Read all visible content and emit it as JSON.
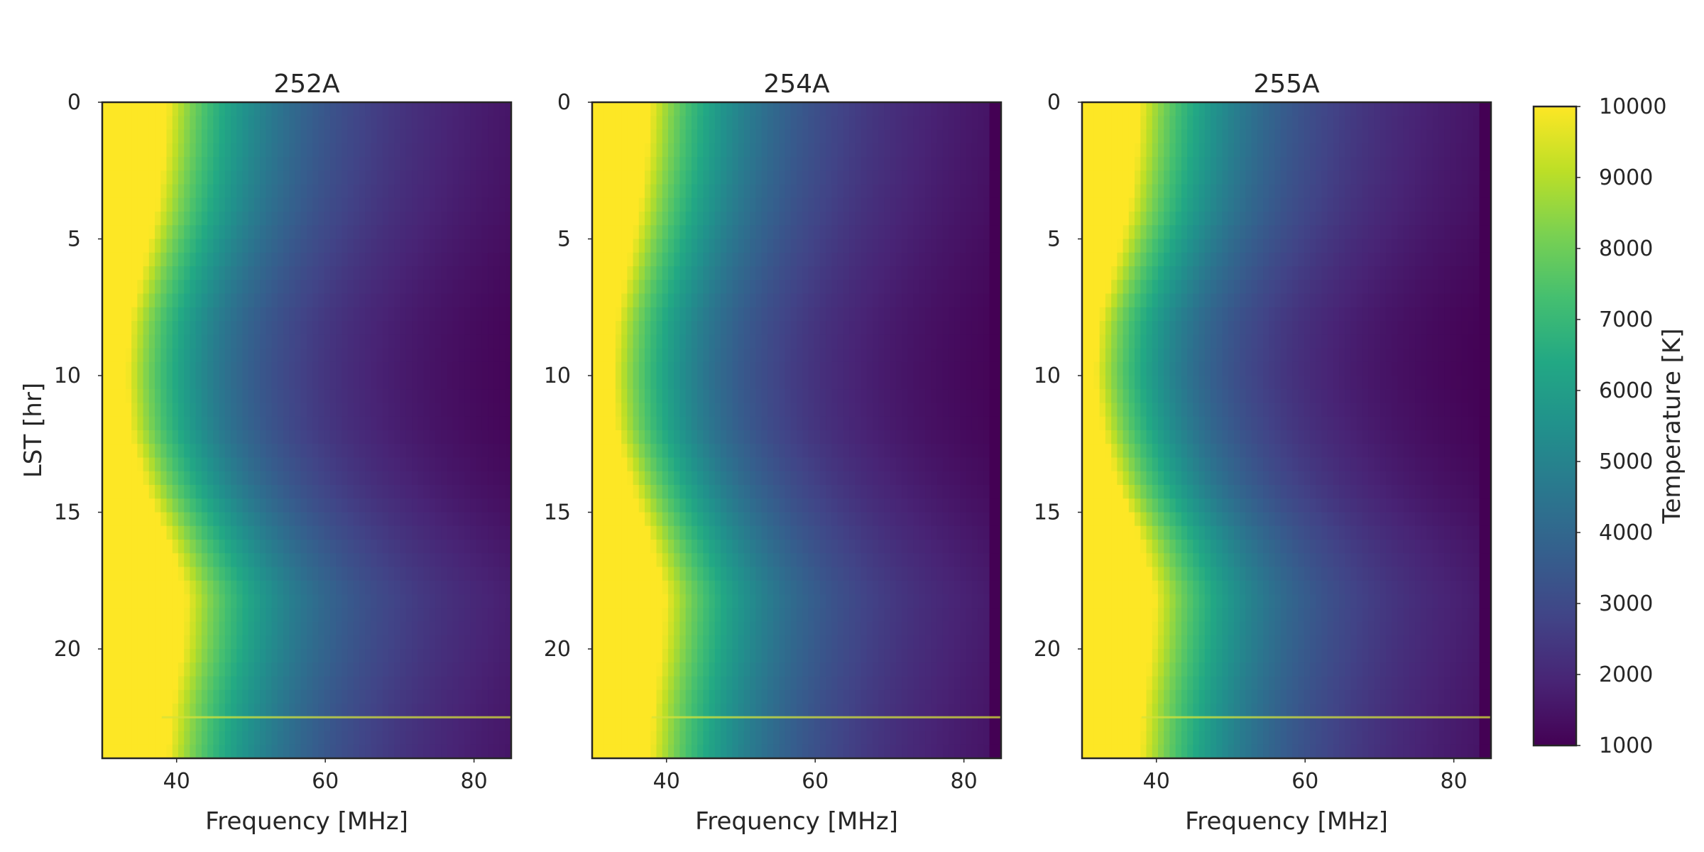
{
  "chart_data": {
    "type": "heatmap",
    "colormap": "viridis",
    "colorbar": {
      "label": "Temperature [K]",
      "range": [
        1000,
        10000
      ],
      "ticks": [
        1000,
        2000,
        3000,
        4000,
        5000,
        6000,
        7000,
        8000,
        9000,
        10000
      ],
      "tick_labels": [
        "1000",
        "2000",
        "3000",
        "4000",
        "5000",
        "6000",
        "7000",
        "8000",
        "9000",
        "10000"
      ]
    },
    "x": {
      "label": "Frequency [MHz]",
      "range": [
        30,
        85
      ],
      "ticks": [
        40,
        60,
        80
      ],
      "tick_labels": [
        "40",
        "60",
        "80"
      ]
    },
    "y": {
      "label": "LST [hr]",
      "range": [
        0,
        24
      ],
      "inverted": true,
      "ticks": [
        0,
        5,
        10,
        15,
        20
      ],
      "tick_labels": [
        "0",
        "5",
        "10",
        "15",
        "20"
      ]
    },
    "panels": [
      {
        "title": "252A",
        "saturation_edge_mhz": {
          "lst": [
            0,
            2,
            4,
            6,
            8,
            10,
            12,
            14,
            16,
            18,
            20,
            22,
            24
          ],
          "freq": [
            38.5,
            38,
            37,
            35.2,
            33.5,
            33,
            33.5,
            35.5,
            38.5,
            41,
            40.5,
            39.2,
            38.5
          ]
        },
        "rfi_lines_lst": [
          22.5
        ],
        "edge_darkening": false
      },
      {
        "title": "254A",
        "saturation_edge_mhz": {
          "lst": [
            0,
            2,
            4,
            6,
            8,
            10,
            12,
            14,
            16,
            18,
            20,
            22,
            24
          ],
          "freq": [
            37.5,
            37,
            36,
            34.5,
            33,
            32.5,
            33,
            35,
            37.5,
            39.5,
            39,
            38,
            37.5
          ]
        },
        "rfi_lines_lst": [
          22.5
        ],
        "edge_darkening": true
      },
      {
        "title": "255A",
        "saturation_edge_mhz": {
          "lst": [
            0,
            2,
            4,
            6,
            8,
            10,
            12,
            14,
            16,
            18,
            20,
            22,
            24
          ],
          "freq": [
            37.5,
            37,
            36,
            34,
            32,
            31.5,
            32.5,
            34.5,
            37.5,
            39.5,
            39,
            38,
            37.5
          ]
        },
        "rfi_lines_lst": [
          22.5
        ],
        "edge_darkening": true
      }
    ]
  }
}
